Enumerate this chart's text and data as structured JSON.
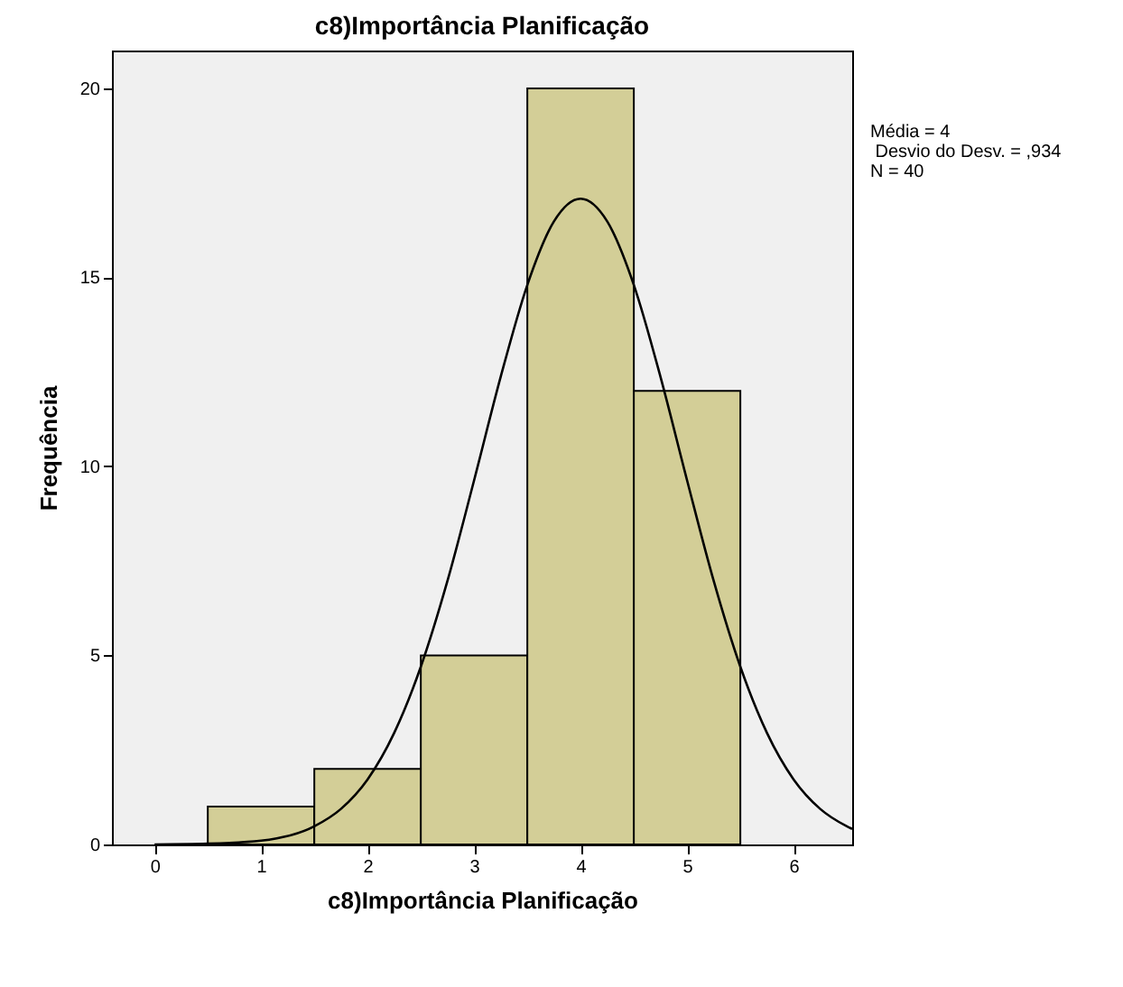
{
  "chart_data": {
    "type": "histogram",
    "title": "c8)Importância  Planificação",
    "xlabel": "c8)Importância  Planificação",
    "ylabel": "Frequência",
    "annotations": [
      "Média = 4",
      " Desvio do Desv. = ,934",
      "N = 40"
    ],
    "bins": [
      0.5,
      1.5,
      2.5,
      3.5,
      4.5,
      5.5
    ],
    "series": [
      {
        "color": "#d3ce97",
        "values": [
          1,
          2,
          5,
          20,
          12
        ]
      },
      {
        "type": "line",
        "color": "#000000",
        "x": [
          0,
          0.5,
          1,
          1.5,
          1.75,
          2,
          2.25,
          2.5,
          2.75,
          3,
          3.25,
          3.5,
          3.75,
          4,
          4.25,
          4.5,
          4.75,
          5,
          5.25,
          5.5,
          5.75,
          6,
          6.25,
          6.5,
          6.55
        ],
        "values": [
          0,
          0.02,
          0.1,
          0.48,
          0.94,
          1.72,
          2.95,
          4.7,
          6.97,
          9.63,
          12.37,
          14.8,
          16.48,
          17.08,
          16.48,
          14.8,
          12.37,
          9.63,
          6.97,
          4.7,
          2.95,
          1.72,
          0.94,
          0.48,
          0.41
        ]
      }
    ],
    "xlim": [
      -0.4,
      6.55
    ],
    "ylim": [
      0,
      21
    ],
    "xticks": [
      0,
      1,
      2,
      3,
      4,
      5,
      6
    ],
    "yticks": [
      0,
      5,
      10,
      15,
      20
    ],
    "grid": false
  }
}
